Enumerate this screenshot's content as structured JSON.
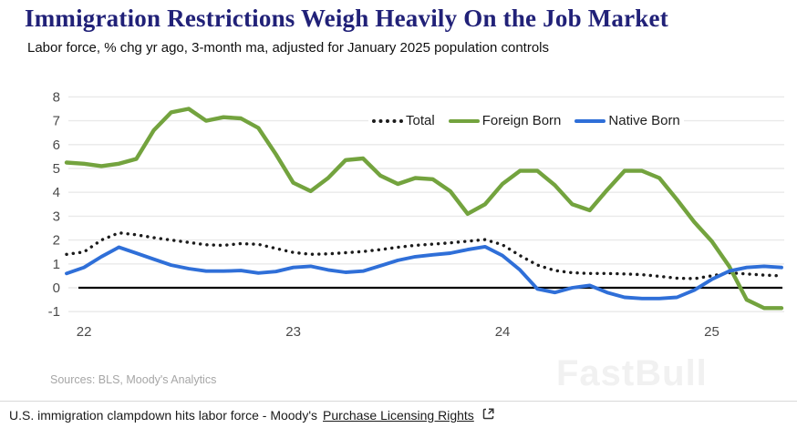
{
  "header": {
    "title": "Immigration Restrictions Weigh Heavily On the Job Market",
    "subtitle": "Labor force, % chg yr ago, 3-month ma, adjusted for January 2025 population controls"
  },
  "chart_data": {
    "type": "line",
    "title": "Immigration Restrictions Weigh Heavily On the Job Market",
    "subtitle": "Labor force, % chg yr ago, 3-month ma, adjusted for January 2025 population controls",
    "ylim": [
      -1,
      8
    ],
    "yticks": [
      8,
      7,
      6,
      5,
      4,
      3,
      2,
      1,
      0,
      -1
    ],
    "x_tick_labels": [
      "22",
      "23",
      "24",
      "25"
    ],
    "x_tick_indices": [
      1,
      13,
      25,
      37
    ],
    "x_resolution": "monthly",
    "x_start_estimate": "Dec 2021",
    "x_end_estimate": "May 2025",
    "grid": true,
    "legend_position": "top-center",
    "zero_line": true,
    "series": [
      {
        "name": "Total",
        "style": "dotted",
        "color": "#1b1b1b",
        "values": [
          1.4,
          1.5,
          2.0,
          2.3,
          2.22,
          2.1,
          2.0,
          1.9,
          1.8,
          1.78,
          1.85,
          1.82,
          1.65,
          1.48,
          1.4,
          1.42,
          1.47,
          1.52,
          1.6,
          1.7,
          1.78,
          1.83,
          1.88,
          1.95,
          2.02,
          1.8,
          1.35,
          0.95,
          0.72,
          0.63,
          0.6,
          0.6,
          0.58,
          0.55,
          0.48,
          0.4,
          0.38,
          0.5,
          0.63,
          0.58,
          0.53,
          0.5
        ]
      },
      {
        "name": "Foreign Born",
        "style": "solid",
        "color": "#73a33e",
        "values": [
          5.25,
          5.2,
          5.1,
          5.2,
          5.4,
          6.6,
          7.35,
          7.5,
          7.0,
          7.15,
          7.1,
          6.7,
          5.6,
          4.4,
          4.05,
          4.6,
          5.35,
          5.42,
          4.7,
          4.35,
          4.6,
          4.55,
          4.05,
          3.1,
          3.5,
          4.35,
          4.9,
          4.9,
          4.3,
          3.5,
          3.25,
          4.1,
          4.9,
          4.9,
          4.6,
          3.7,
          2.75,
          1.95,
          0.9,
          -0.5,
          -0.85,
          -0.85
        ]
      },
      {
        "name": "Native Born",
        "style": "solid",
        "color": "#2f6fd8",
        "values": [
          0.6,
          0.85,
          1.3,
          1.7,
          1.45,
          1.2,
          0.95,
          0.8,
          0.7,
          0.7,
          0.72,
          0.62,
          0.68,
          0.85,
          0.9,
          0.75,
          0.65,
          0.7,
          0.92,
          1.15,
          1.3,
          1.38,
          1.45,
          1.6,
          1.72,
          1.35,
          0.75,
          -0.05,
          -0.2,
          0.0,
          0.1,
          -0.2,
          -0.4,
          -0.45,
          -0.45,
          -0.4,
          -0.1,
          0.35,
          0.7,
          0.85,
          0.9,
          0.85
        ]
      }
    ]
  },
  "legend": {
    "items": [
      {
        "label": "Total"
      },
      {
        "label": "Foreign Born"
      },
      {
        "label": "Native Born"
      }
    ]
  },
  "footer": {
    "sources": "Sources: BLS, Moody's Analytics",
    "watermark": "FastBull"
  },
  "caption": {
    "text": "U.S. immigration clampdown hits labor force - Moody's",
    "link_text": "Purchase Licensing Rights"
  }
}
